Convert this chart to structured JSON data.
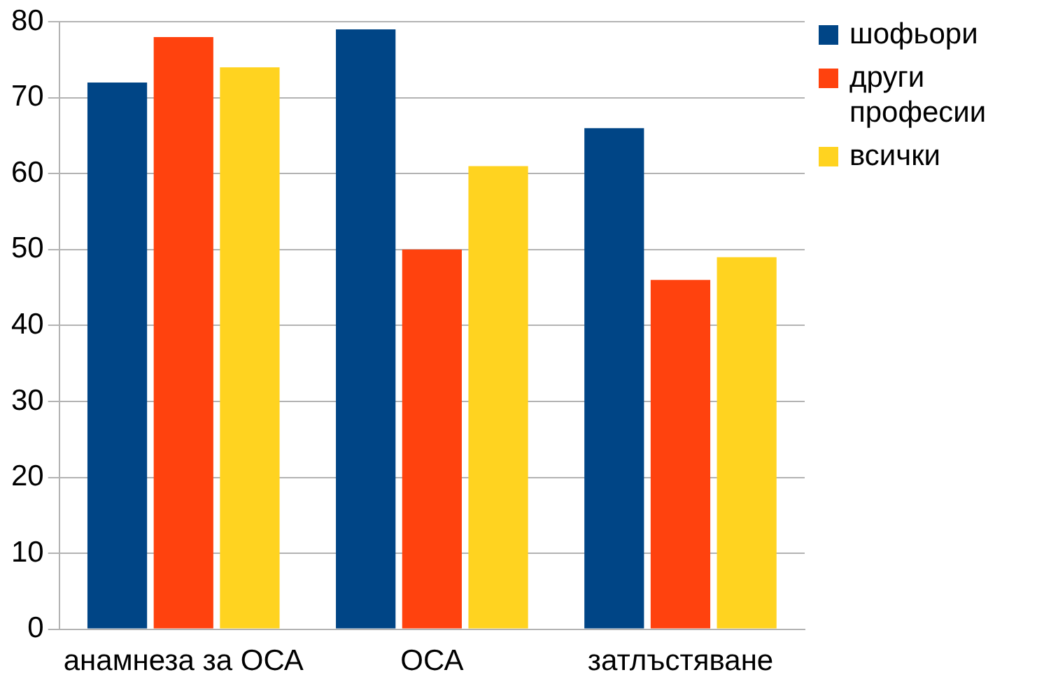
{
  "chart_data": {
    "type": "bar",
    "categories": [
      "анамнеза за ОСА",
      "ОСА",
      "затлъстяване"
    ],
    "series": [
      {
        "name": "шофьори",
        "color": "#004586",
        "values": [
          72,
          79,
          66
        ]
      },
      {
        "name": "други професии",
        "color": "#ff420e",
        "values": [
          78,
          50,
          46
        ]
      },
      {
        "name": "всички",
        "color": "#ffd320",
        "values": [
          74,
          61,
          49
        ]
      }
    ],
    "ylim": [
      0,
      80
    ],
    "yticks": [
      0,
      10,
      20,
      30,
      40,
      50,
      60,
      70,
      80
    ],
    "grid": "y",
    "legend": "right"
  }
}
